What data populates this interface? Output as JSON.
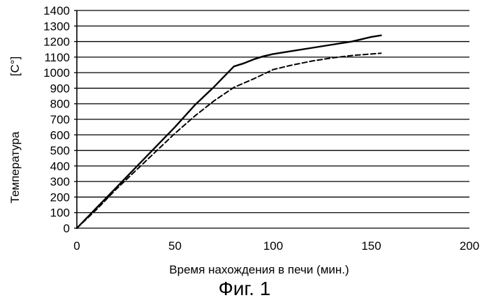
{
  "figure": {
    "caption": "Фиг. 1"
  },
  "chart_data": {
    "type": "line",
    "title": "",
    "xlabel": "Время нахождения в печи (мин.)",
    "ylabel": "Температура",
    "ylabel_unit": "[C°]",
    "xlim": [
      0,
      200
    ],
    "ylim": [
      0,
      1400
    ],
    "x_ticks": [
      0,
      50,
      100,
      150,
      200
    ],
    "y_ticks": [
      0,
      100,
      200,
      300,
      400,
      500,
      600,
      700,
      800,
      900,
      1000,
      1100,
      1200,
      1300,
      1400
    ],
    "grid": "horizontal",
    "series": [
      {
        "style": "solid",
        "color": "#000000",
        "x": [
          0,
          10,
          20,
          30,
          40,
          50,
          60,
          70,
          80,
          85,
          90,
          95,
          100,
          105,
          110,
          120,
          130,
          140,
          150,
          155
        ],
        "y": [
          0,
          130,
          260,
          390,
          520,
          650,
          790,
          910,
          1040,
          1060,
          1085,
          1105,
          1120,
          1130,
          1140,
          1160,
          1180,
          1200,
          1230,
          1240
        ]
      },
      {
        "style": "dashed",
        "color": "#000000",
        "x": [
          0,
          10,
          20,
          30,
          40,
          50,
          60,
          70,
          80,
          90,
          100,
          110,
          120,
          130,
          140,
          150,
          155
        ],
        "y": [
          0,
          120,
          250,
          370,
          490,
          610,
          720,
          820,
          905,
          960,
          1020,
          1050,
          1075,
          1095,
          1110,
          1120,
          1125
        ]
      }
    ]
  }
}
